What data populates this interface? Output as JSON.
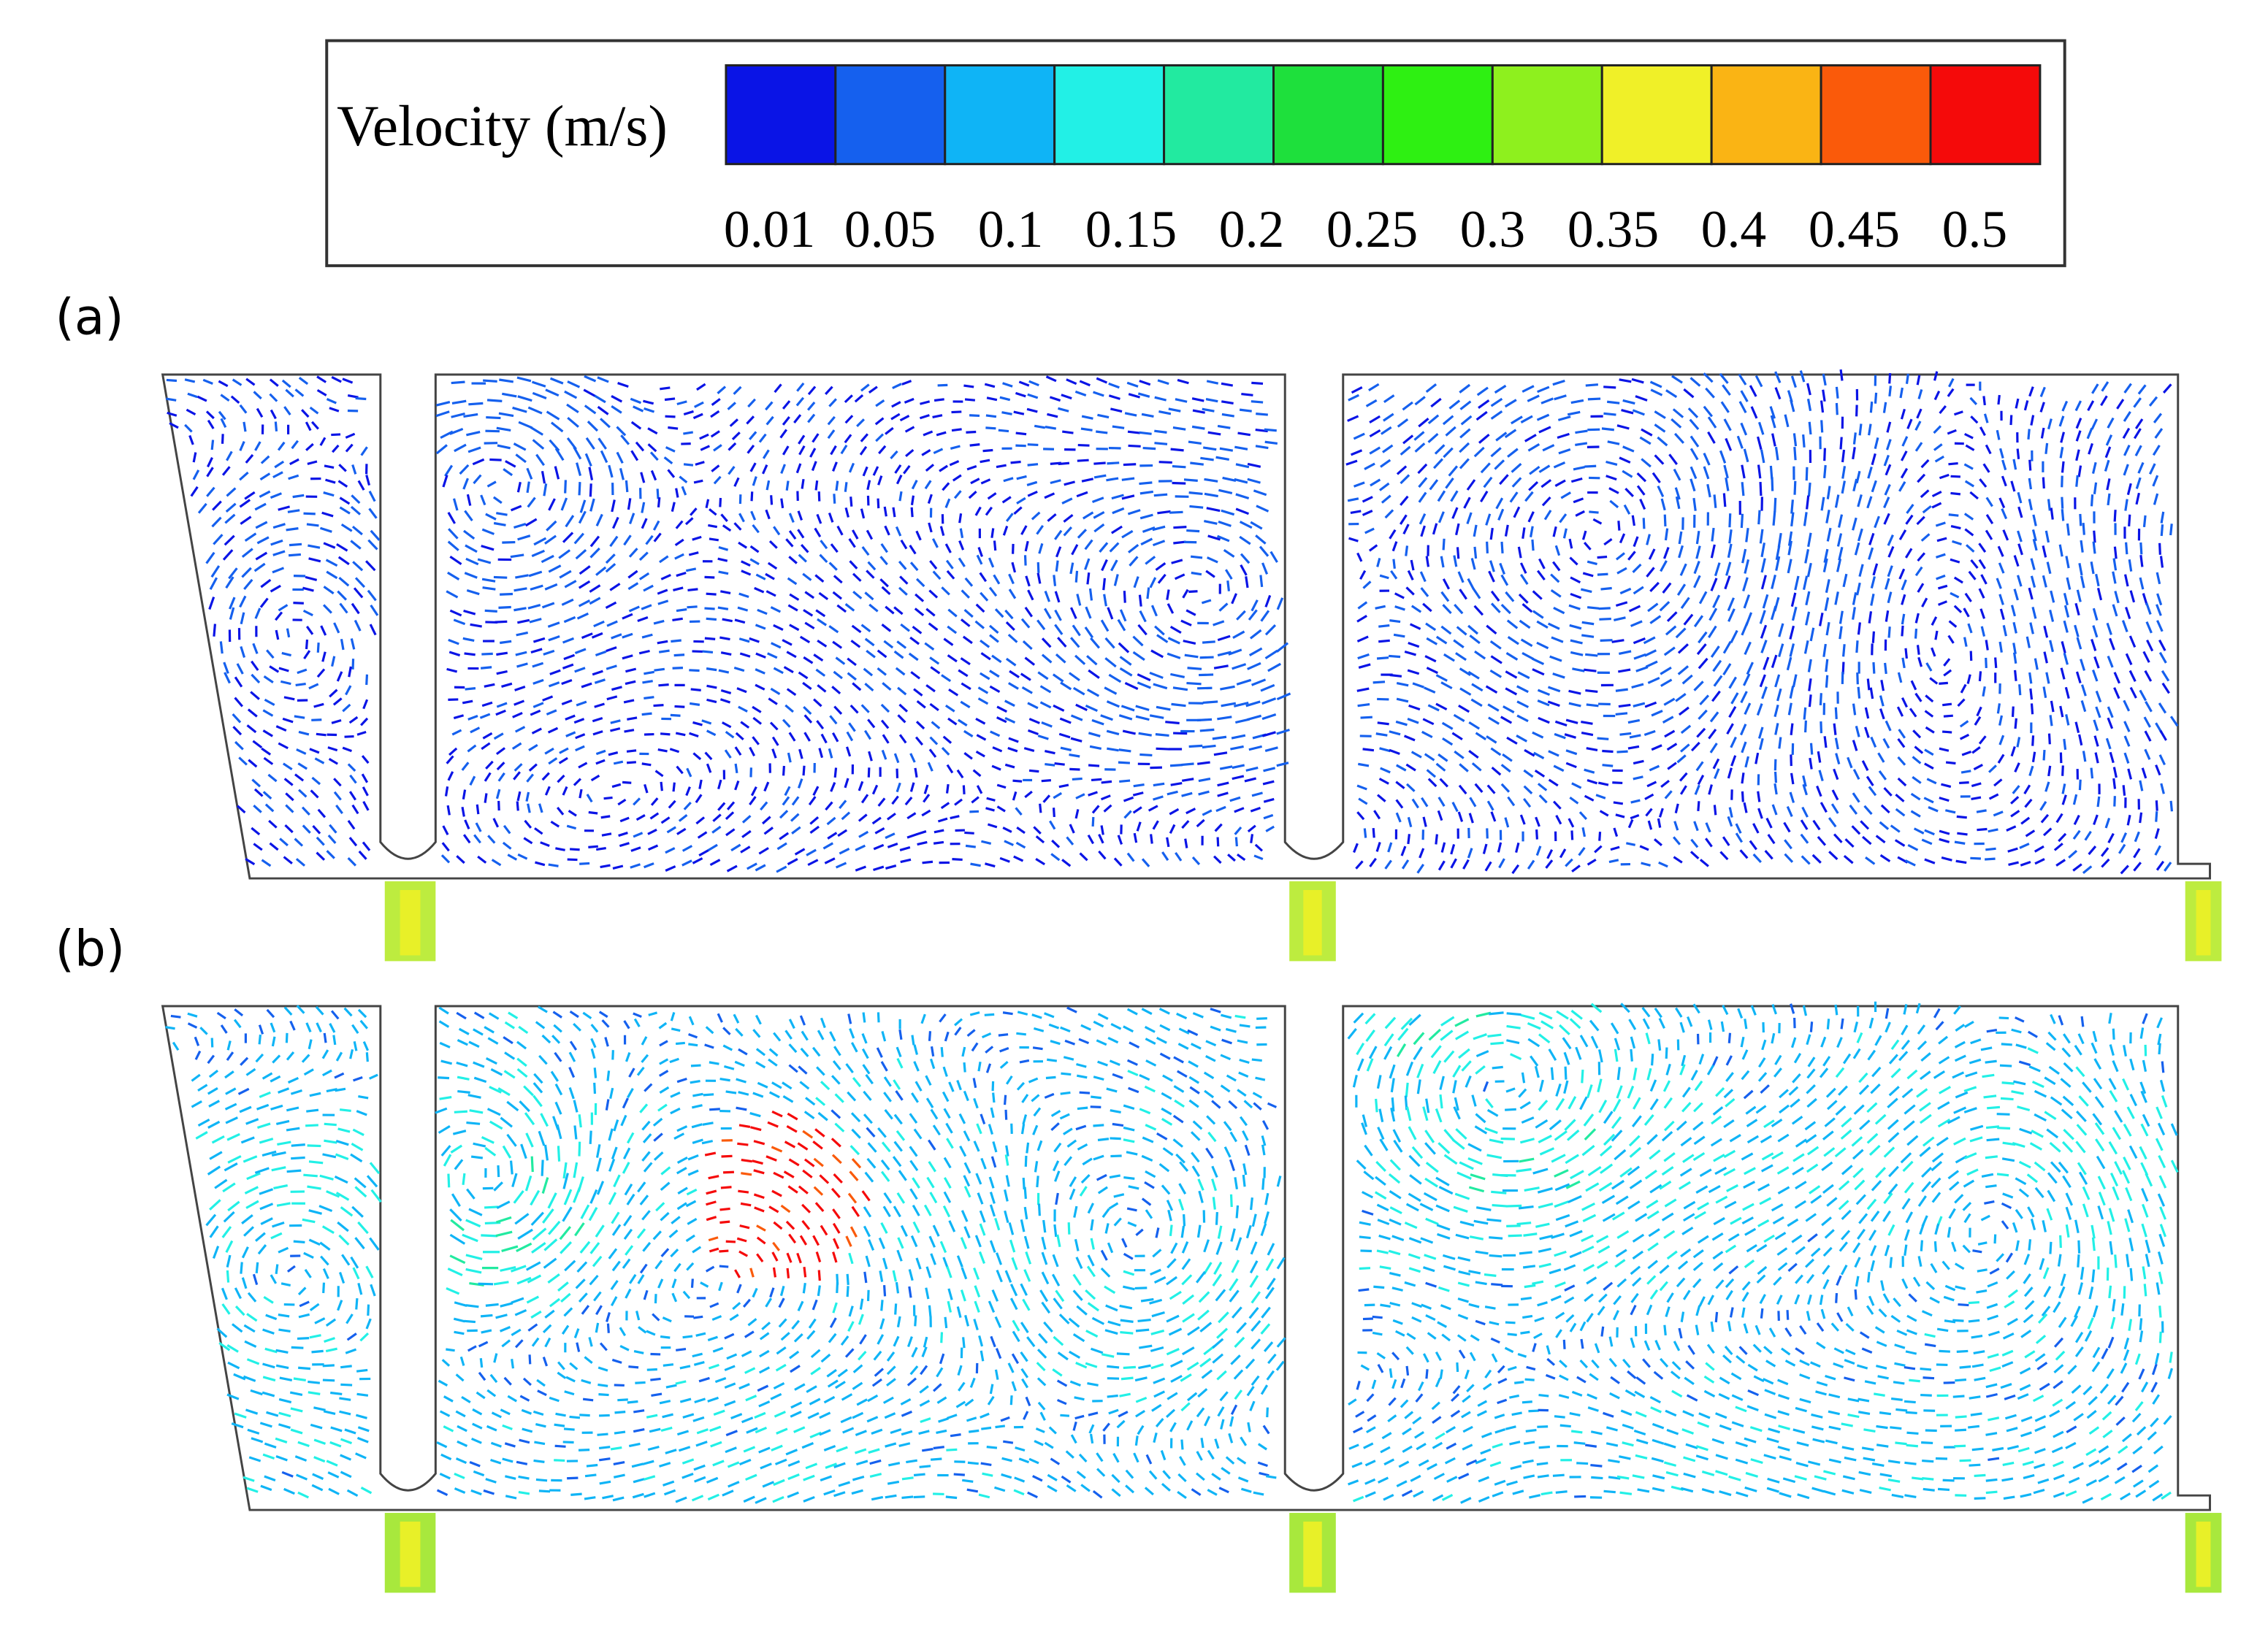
{
  "legend": {
    "title": "Velocity (m/s)",
    "colors": [
      "#0a14e6",
      "#1560ee",
      "#0fb4f6",
      "#22f0e6",
      "#22eaa0",
      "#1ee03c",
      "#2ef012",
      "#8ef01e",
      "#f0f028",
      "#fab414",
      "#fa5a0a",
      "#f50a0a"
    ],
    "tick_labels": [
      "0.01",
      "0.05",
      "0.1",
      "0.15",
      "0.2",
      "0.25",
      "0.3",
      "0.35",
      "0.4",
      "0.45",
      "0.5"
    ]
  },
  "panels": [
    {
      "label": "(a)"
    },
    {
      "label": "(b)"
    }
  ]
}
